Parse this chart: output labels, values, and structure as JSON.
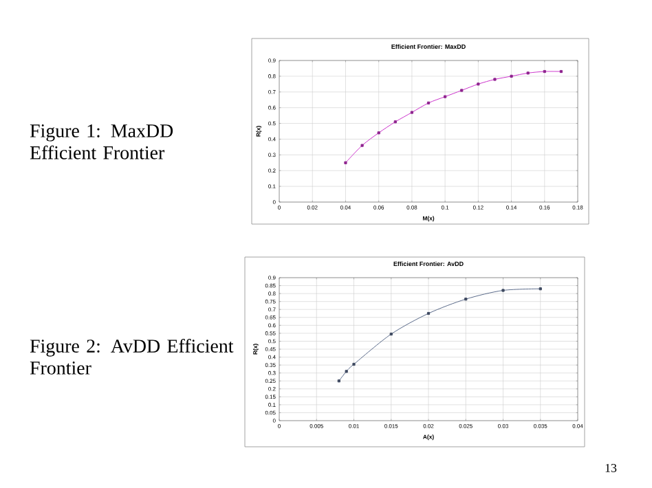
{
  "chart_data": [
    {
      "type": "line",
      "title": "Efficient Frontier: MaxDD",
      "xlabel": "M(x)",
      "ylabel": "R(x)",
      "annotations": [
        "Figure 1: MaxDD Efficient Frontier"
      ],
      "x": [
        0.04,
        0.05,
        0.06,
        0.07,
        0.08,
        0.09,
        0.1,
        0.11,
        0.12,
        0.13,
        0.14,
        0.15,
        0.16,
        0.17
      ],
      "series": [
        {
          "color": "#cc33cc",
          "values": [
            0.25,
            0.36,
            0.44,
            0.51,
            0.57,
            0.63,
            0.67,
            0.71,
            0.75,
            0.78,
            0.8,
            0.82,
            0.83,
            0.83
          ]
        }
      ],
      "xlim": [
        0,
        0.18
      ],
      "xticks": [
        0,
        0.02,
        0.04,
        0.06,
        0.08,
        0.1,
        0.12,
        0.14,
        0.16,
        0.18
      ],
      "ylim": [
        0,
        0.9
      ],
      "yticks": [
        0,
        0.1,
        0.2,
        0.3,
        0.4,
        0.5,
        0.6,
        0.7,
        0.8,
        0.9
      ],
      "grid": true,
      "marker": "square",
      "line_style": "solid"
    },
    {
      "type": "line",
      "title": "Efficient Frontier: AvDD",
      "xlabel": "A(x)",
      "ylabel": "R(x)",
      "annotations": [
        "Figure 2: AvDD Efficient Frontier",
        "13"
      ],
      "x": [
        0.008,
        0.009,
        0.01,
        0.015,
        0.02,
        0.025,
        0.03,
        0.035
      ],
      "series": [
        {
          "color": "#5a6a8a",
          "values": [
            0.25,
            0.31,
            0.355,
            0.545,
            0.675,
            0.765,
            0.82,
            0.83
          ]
        }
      ],
      "xlim": [
        0,
        0.04
      ],
      "xticks": [
        0,
        0.005,
        0.01,
        0.015,
        0.02,
        0.025,
        0.03,
        0.035,
        0.04
      ],
      "ylim": [
        0,
        0.9
      ],
      "yticks": [
        0,
        0.05,
        0.1,
        0.15,
        0.2,
        0.25,
        0.3,
        0.35,
        0.4,
        0.45,
        0.5,
        0.55,
        0.6,
        0.65,
        0.7,
        0.75,
        0.8,
        0.85,
        0.9
      ],
      "grid": true,
      "marker": "square",
      "line_style": "solid"
    }
  ]
}
